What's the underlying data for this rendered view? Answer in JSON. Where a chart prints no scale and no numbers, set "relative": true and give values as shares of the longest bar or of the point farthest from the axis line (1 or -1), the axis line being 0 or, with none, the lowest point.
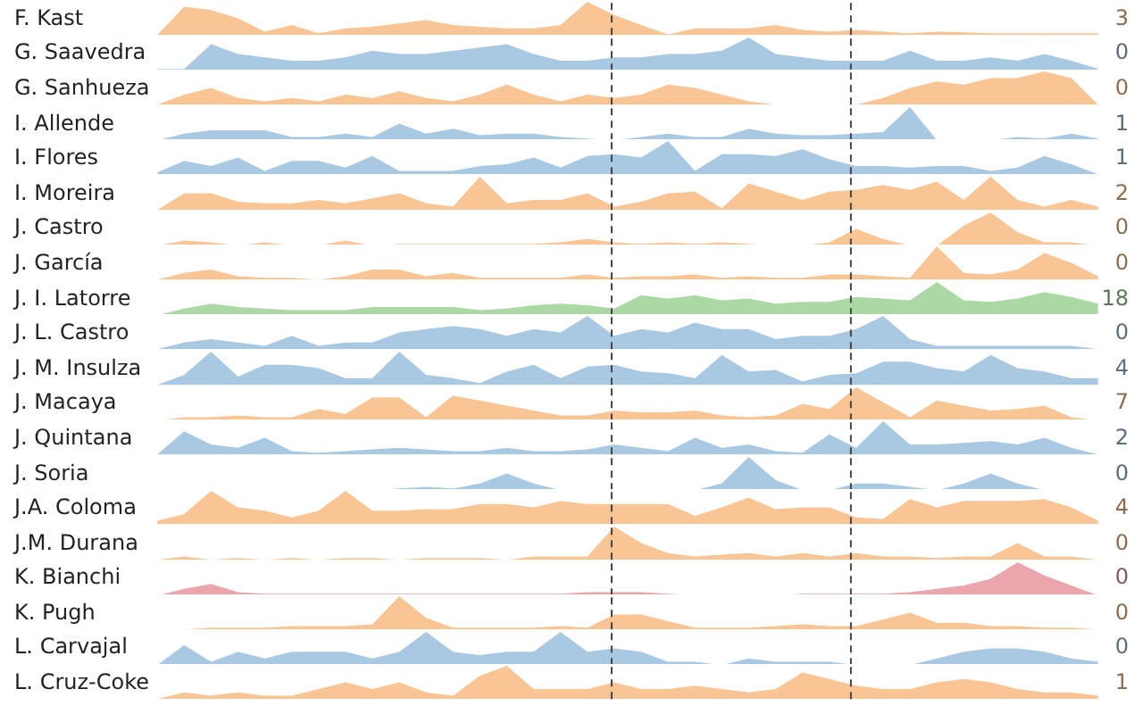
{
  "chart_data": [
    {
      "type": "area",
      "title": "F. Kast",
      "relative": true,
      "tick_labels": false,
      "categories": [
        null,
        null,
        null,
        null,
        null,
        null,
        null,
        null,
        null,
        null,
        null,
        null,
        null,
        null,
        null,
        null,
        null,
        null,
        null,
        null,
        null,
        null,
        null,
        null,
        null,
        null,
        null,
        null,
        null,
        null,
        null,
        null,
        null,
        null,
        null,
        null
      ],
      "color": "#f9c595",
      "annotations": [
        "3"
      ],
      "values": [
        0,
        0.85,
        0.75,
        0.5,
        0.1,
        0.3,
        0.05,
        0.2,
        0.25,
        0.35,
        0.45,
        0.3,
        0.25,
        0.2,
        0.2,
        0.3,
        1,
        0.6,
        0.3,
        0.02,
        0.2,
        0.2,
        0.2,
        0.3,
        0.15,
        0.1,
        0.15,
        0.1,
        0.05,
        0.1,
        0.08,
        0.05,
        0.05,
        0.05,
        0.05,
        0.05
      ]
    },
    {
      "type": "area",
      "title": "G. Saavedra",
      "relative": true,
      "tick_labels": false,
      "categories": [
        null,
        null,
        null,
        null,
        null,
        null,
        null,
        null,
        null,
        null,
        null,
        null,
        null,
        null,
        null,
        null,
        null,
        null,
        null,
        null,
        null,
        null,
        null,
        null,
        null,
        null,
        null,
        null,
        null,
        null,
        null,
        null,
        null,
        null,
        null,
        null
      ],
      "color": "#a9c8e2",
      "annotations": [
        "0"
      ],
      "values": [
        0.05,
        0.05,
        0.8,
        0.5,
        0.4,
        0.3,
        0.3,
        0.4,
        0.6,
        0.5,
        0.5,
        0.6,
        0.7,
        0.8,
        0.5,
        0.3,
        0.3,
        0.4,
        0.4,
        0.5,
        0.5,
        0.6,
        1,
        0.5,
        0.4,
        0.3,
        0.3,
        0.3,
        0.6,
        0.3,
        0.3,
        0.4,
        0.3,
        0.5,
        0.3,
        0.05
      ]
    },
    {
      "type": "area",
      "title": "G. Sanhueza",
      "relative": true,
      "tick_labels": false,
      "categories": [
        null,
        null,
        null,
        null,
        null,
        null,
        null,
        null,
        null,
        null,
        null,
        null,
        null,
        null,
        null,
        null,
        null,
        null,
        null,
        null,
        null,
        null,
        null,
        null,
        null,
        null,
        null,
        null,
        null,
        null,
        null,
        null,
        null,
        null,
        null,
        null
      ],
      "color": "#f9c595",
      "annotations": [
        "0"
      ],
      "values": [
        0,
        0.3,
        0.5,
        0.2,
        0.1,
        0.2,
        0.1,
        0.3,
        0.2,
        0.4,
        0.2,
        0.1,
        0.3,
        0.6,
        0.3,
        0.1,
        0.3,
        0.2,
        0.3,
        0.6,
        0.5,
        0.3,
        0.1,
        0,
        0,
        0,
        0,
        0.2,
        0.5,
        0.7,
        0.6,
        0.8,
        0.8,
        1,
        0.8,
        0
      ]
    },
    {
      "type": "area",
      "title": "I. Allende",
      "relative": true,
      "tick_labels": false,
      "categories": [
        null,
        null,
        null,
        null,
        null,
        null,
        null,
        null,
        null,
        null,
        null,
        null,
        null,
        null,
        null,
        null,
        null,
        null,
        null,
        null,
        null,
        null,
        null,
        null,
        null,
        null,
        null,
        null,
        null,
        null,
        null,
        null,
        null,
        null,
        null,
        null
      ],
      "color": "#a9c8e2",
      "annotations": [
        "1"
      ],
      "values": [
        0,
        0.2,
        0.3,
        0.3,
        0.3,
        0.1,
        0.1,
        0.2,
        0.1,
        0.5,
        0.2,
        0.35,
        0.15,
        0.2,
        0.2,
        0.1,
        0.05,
        0,
        0.1,
        0.2,
        0.1,
        0.1,
        0.35,
        0.2,
        0.15,
        0.15,
        0.2,
        0.25,
        1,
        0,
        0,
        0,
        0.1,
        0.05,
        0.2,
        0.05
      ]
    },
    {
      "type": "area",
      "title": "I. Flores",
      "relative": true,
      "tick_labels": false,
      "categories": [
        null,
        null,
        null,
        null,
        null,
        null,
        null,
        null,
        null,
        null,
        null,
        null,
        null,
        null,
        null,
        null,
        null,
        null,
        null,
        null,
        null,
        null,
        null,
        null,
        null,
        null,
        null,
        null,
        null,
        null,
        null,
        null,
        null,
        null,
        null,
        null
      ],
      "color": "#a9c8e2",
      "annotations": [
        "1"
      ],
      "values": [
        0.05,
        0.4,
        0.25,
        0.5,
        0.1,
        0.4,
        0.4,
        0.2,
        0.55,
        0.1,
        0.1,
        0.1,
        0.25,
        0.3,
        0.5,
        0.2,
        0.55,
        0.6,
        0.5,
        1,
        0.1,
        0.6,
        0.6,
        0.55,
        0.75,
        0.45,
        0.25,
        0.25,
        0.2,
        0.25,
        0.25,
        0.1,
        0.2,
        0.55,
        0.3,
        0
      ]
    },
    {
      "type": "area",
      "title": "I. Moreira",
      "relative": true,
      "tick_labels": false,
      "categories": [
        null,
        null,
        null,
        null,
        null,
        null,
        null,
        null,
        null,
        null,
        null,
        null,
        null,
        null,
        null,
        null,
        null,
        null,
        null,
        null,
        null,
        null,
        null,
        null,
        null,
        null,
        null,
        null,
        null,
        null,
        null,
        null,
        null,
        null,
        null,
        null
      ],
      "color": "#f9c595",
      "annotations": [
        "2"
      ],
      "values": [
        0,
        0.5,
        0.5,
        0.25,
        0.2,
        0.2,
        0.3,
        0.2,
        0.35,
        0.5,
        0.2,
        0.1,
        1,
        0.2,
        0.3,
        0.3,
        0.5,
        0.1,
        0.25,
        0.5,
        0.55,
        0.05,
        0.8,
        0.55,
        0.3,
        0.55,
        0.6,
        0.75,
        0.6,
        0.85,
        0.3,
        1,
        0.3,
        0.1,
        0.3,
        0.1
      ]
    },
    {
      "type": "area",
      "title": "J. Castro",
      "relative": true,
      "tick_labels": false,
      "categories": [
        null,
        null,
        null,
        null,
        null,
        null,
        null,
        null,
        null,
        null,
        null,
        null,
        null,
        null,
        null,
        null,
        null,
        null,
        null,
        null,
        null,
        null,
        null,
        null,
        null,
        null,
        null,
        null,
        null,
        null,
        null,
        null,
        null,
        null,
        null,
        null
      ],
      "color": "#f9c595",
      "annotations": [
        "0"
      ],
      "values": [
        0,
        0.15,
        0.1,
        0,
        0.1,
        0,
        0,
        0.15,
        0,
        0.05,
        0.05,
        0.05,
        0.05,
        0.05,
        0.05,
        0.1,
        0.2,
        0.1,
        0.05,
        0.1,
        0.05,
        0.1,
        0.05,
        0,
        0,
        0.1,
        0.5,
        0.2,
        0,
        0,
        0.6,
        1,
        0.4,
        0.1,
        0.1,
        0
      ]
    },
    {
      "type": "area",
      "title": "J. García",
      "relative": true,
      "tick_labels": false,
      "categories": [
        null,
        null,
        null,
        null,
        null,
        null,
        null,
        null,
        null,
        null,
        null,
        null,
        null,
        null,
        null,
        null,
        null,
        null,
        null,
        null,
        null,
        null,
        null,
        null,
        null,
        null,
        null,
        null,
        null,
        null,
        null,
        null,
        null,
        null,
        null,
        null
      ],
      "color": "#f9c595",
      "annotations": [
        "0"
      ],
      "values": [
        0,
        0.2,
        0.3,
        0.1,
        0.05,
        0.05,
        0,
        0.1,
        0.3,
        0.3,
        0.1,
        0.2,
        0.05,
        0.05,
        0.05,
        0.05,
        0.15,
        0.05,
        0.1,
        0.1,
        0.15,
        0.05,
        0.1,
        0.05,
        0.05,
        0.15,
        0.15,
        0.1,
        0.05,
        1,
        0.2,
        0.15,
        0.3,
        0.8,
        0.5,
        0.1
      ]
    },
    {
      "type": "area",
      "title": "J. I. Latorre",
      "relative": true,
      "tick_labels": false,
      "categories": [
        null,
        null,
        null,
        null,
        null,
        null,
        null,
        null,
        null,
        null,
        null,
        null,
        null,
        null,
        null,
        null,
        null,
        null,
        null,
        null,
        null,
        null,
        null,
        null,
        null,
        null,
        null,
        null,
        null,
        null,
        null,
        null,
        null,
        null,
        null,
        null
      ],
      "color": "#acd8a5",
      "annotations": [
        "18"
      ],
      "values": [
        0,
        0.2,
        0.35,
        0.25,
        0.2,
        0.15,
        0.15,
        0.15,
        0.25,
        0.25,
        0.25,
        0.25,
        0.15,
        0.2,
        0.3,
        0.35,
        0.3,
        0.2,
        0.6,
        0.5,
        0.6,
        0.45,
        0.5,
        0.35,
        0.4,
        0.4,
        0.55,
        0.5,
        0.45,
        1,
        0.45,
        0.4,
        0.5,
        0.7,
        0.55,
        0.35
      ]
    },
    {
      "type": "area",
      "title": "J. L. Castro",
      "relative": true,
      "tick_labels": false,
      "categories": [
        null,
        null,
        null,
        null,
        null,
        null,
        null,
        null,
        null,
        null,
        null,
        null,
        null,
        null,
        null,
        null,
        null,
        null,
        null,
        null,
        null,
        null,
        null,
        null,
        null,
        null,
        null,
        null,
        null,
        null,
        null,
        null,
        null,
        null,
        null,
        null
      ],
      "color": "#a9c8e2",
      "annotations": [
        "0"
      ],
      "values": [
        0,
        0.2,
        0.3,
        0.2,
        0.1,
        0.4,
        0.1,
        0.2,
        0.2,
        0.5,
        0.6,
        0.7,
        0.6,
        0.4,
        0.6,
        0.5,
        1,
        0.4,
        0.6,
        0.5,
        0.8,
        0.6,
        0.6,
        0.3,
        0.4,
        0.4,
        0.6,
        1,
        0.3,
        0.1,
        0.1,
        0.1,
        0.1,
        0.1,
        0.1,
        0
      ]
    },
    {
      "type": "area",
      "title": "J. M. Insulza",
      "relative": true,
      "tick_labels": false,
      "categories": [
        null,
        null,
        null,
        null,
        null,
        null,
        null,
        null,
        null,
        null,
        null,
        null,
        null,
        null,
        null,
        null,
        null,
        null,
        null,
        null,
        null,
        null,
        null,
        null,
        null,
        null,
        null,
        null,
        null,
        null,
        null,
        null,
        null,
        null,
        null,
        null
      ],
      "color": "#a9c8e2",
      "annotations": [
        "4"
      ],
      "values": [
        0,
        0.3,
        1,
        0.25,
        0.6,
        0.6,
        0.5,
        0.2,
        0.2,
        1,
        0.3,
        0.2,
        0.05,
        0.4,
        0.6,
        0.2,
        0.55,
        0.6,
        0.4,
        0.35,
        0.2,
        0.9,
        0.4,
        0.45,
        0.1,
        0.3,
        0.35,
        0.7,
        0.7,
        0.5,
        0.4,
        0.9,
        0.5,
        0.4,
        0.2,
        0.2
      ]
    },
    {
      "type": "area",
      "title": "J. Macaya",
      "relative": true,
      "tick_labels": false,
      "categories": [
        null,
        null,
        null,
        null,
        null,
        null,
        null,
        null,
        null,
        null,
        null,
        null,
        null,
        null,
        null,
        null,
        null,
        null,
        null,
        null,
        null,
        null,
        null,
        null,
        null,
        null,
        null,
        null,
        null,
        null,
        null,
        null,
        null,
        null,
        null,
        null
      ],
      "color": "#f9c595",
      "annotations": [
        "7"
      ],
      "values": [
        0,
        0.1,
        0.1,
        0.15,
        0.1,
        0.1,
        0.35,
        0.2,
        0.7,
        0.7,
        0.1,
        0.75,
        0.6,
        0.45,
        0.3,
        0.15,
        0.15,
        0.3,
        0.25,
        0.25,
        0.3,
        0.15,
        0.1,
        0.15,
        0.5,
        0.35,
        1,
        0.55,
        0.1,
        0.6,
        0.45,
        0.3,
        0.35,
        0.45,
        0.1,
        0
      ]
    },
    {
      "type": "area",
      "title": "J. Quintana",
      "relative": true,
      "tick_labels": false,
      "categories": [
        null,
        null,
        null,
        null,
        null,
        null,
        null,
        null,
        null,
        null,
        null,
        null,
        null,
        null,
        null,
        null,
        null,
        null,
        null,
        null,
        null,
        null,
        null,
        null,
        null,
        null,
        null,
        null,
        null,
        null,
        null,
        null,
        null,
        null,
        null,
        null
      ],
      "color": "#a9c8e2",
      "annotations": [
        "2"
      ],
      "values": [
        0,
        0.7,
        0.3,
        0.2,
        0.5,
        0.1,
        0.05,
        0.1,
        0.15,
        0.2,
        0.15,
        0.1,
        0.1,
        0.2,
        0.1,
        0.1,
        0.15,
        0.3,
        0.2,
        0.1,
        0.5,
        0.2,
        0.3,
        0.1,
        0.05,
        0.6,
        0.2,
        1,
        0.3,
        0.3,
        0.35,
        0.4,
        0.3,
        0.5,
        0.2,
        0
      ]
    },
    {
      "type": "area",
      "title": "J. Soria",
      "relative": true,
      "tick_labels": false,
      "categories": [
        null,
        null,
        null,
        null,
        null,
        null,
        null,
        null,
        null,
        null,
        null,
        null,
        null,
        null,
        null,
        null,
        null,
        null,
        null,
        null,
        null,
        null,
        null,
        null,
        null,
        null,
        null,
        null,
        null,
        null,
        null,
        null,
        null,
        null,
        null,
        null
      ],
      "color": "#a9c8e2",
      "annotations": [
        "0"
      ],
      "values": [
        0,
        0,
        0,
        0,
        0,
        0,
        0,
        0,
        0,
        0.05,
        0.1,
        0.05,
        0.2,
        0.5,
        0.2,
        0,
        0,
        0,
        0,
        0,
        0,
        0.2,
        1,
        0.3,
        0,
        0,
        0.2,
        0.2,
        0.1,
        0,
        0.2,
        0.5,
        0.2,
        0,
        0,
        0
      ]
    },
    {
      "type": "area",
      "title": "J.A. Coloma",
      "relative": true,
      "tick_labels": false,
      "categories": [
        null,
        null,
        null,
        null,
        null,
        null,
        null,
        null,
        null,
        null,
        null,
        null,
        null,
        null,
        null,
        null,
        null,
        null,
        null,
        null,
        null,
        null,
        null,
        null,
        null,
        null,
        null,
        null,
        null,
        null,
        null,
        null,
        null,
        null,
        null,
        null
      ],
      "color": "#f9c595",
      "annotations": [
        "4"
      ],
      "values": [
        0.1,
        0.3,
        1,
        0.5,
        0.4,
        0.2,
        0.4,
        1,
        0.4,
        0.4,
        0.45,
        0.45,
        0.6,
        0.6,
        0.5,
        0.7,
        0.6,
        0.6,
        0.6,
        0.6,
        0.25,
        0.5,
        0.8,
        0.45,
        0.5,
        0.5,
        0.2,
        0.15,
        0.75,
        0.5,
        0.7,
        0.7,
        0.7,
        0.75,
        0.5,
        0.1
      ]
    },
    {
      "type": "area",
      "title": "J.M. Durana",
      "relative": true,
      "tick_labels": false,
      "categories": [
        null,
        null,
        null,
        null,
        null,
        null,
        null,
        null,
        null,
        null,
        null,
        null,
        null,
        null,
        null,
        null,
        null,
        null,
        null,
        null,
        null,
        null,
        null,
        null,
        null,
        null,
        null,
        null,
        null,
        null,
        null,
        null,
        null,
        null,
        null,
        null
      ],
      "color": "#f9c595",
      "annotations": [
        "0"
      ],
      "values": [
        0,
        0.1,
        0,
        0.05,
        0,
        0.05,
        0,
        0.05,
        0.05,
        0,
        0.05,
        0.05,
        0.05,
        0,
        0.1,
        0.1,
        0.1,
        1,
        0.5,
        0.2,
        0.1,
        0.15,
        0.2,
        0.1,
        0.2,
        0.1,
        0.2,
        0.1,
        0.1,
        0.05,
        0.1,
        0.1,
        0.5,
        0.1,
        0.1,
        0
      ]
    },
    {
      "type": "area",
      "title": "K. Bianchi",
      "relative": true,
      "tick_labels": false,
      "categories": [
        null,
        null,
        null,
        null,
        null,
        null,
        null,
        null,
        null,
        null,
        null,
        null,
        null,
        null,
        null,
        null,
        null,
        null,
        null,
        null,
        null,
        null,
        null,
        null,
        null,
        null,
        null,
        null,
        null,
        null,
        null,
        null,
        null,
        null,
        null,
        null
      ],
      "color": "#eba6ad",
      "annotations": [
        "0"
      ],
      "values": [
        0,
        0.2,
        0.35,
        0.1,
        0.05,
        0.05,
        0.05,
        0.05,
        0.05,
        0.05,
        0.05,
        0.05,
        0.05,
        0.05,
        0.05,
        0.05,
        0.1,
        0.1,
        0.1,
        0.05,
        0,
        0,
        0,
        0,
        0.05,
        0.05,
        0.05,
        0.05,
        0.1,
        0.2,
        0.3,
        0.5,
        1,
        0.6,
        0.3,
        0
      ]
    },
    {
      "type": "area",
      "title": "K. Pugh",
      "relative": true,
      "tick_labels": false,
      "categories": [
        null,
        null,
        null,
        null,
        null,
        null,
        null,
        null,
        null,
        null,
        null,
        null,
        null,
        null,
        null,
        null,
        null,
        null,
        null,
        null,
        null,
        null,
        null,
        null,
        null,
        null,
        null,
        null,
        null,
        null,
        null,
        null,
        null,
        null,
        null,
        null
      ],
      "color": "#f9c595",
      "annotations": [
        "0"
      ],
      "values": [
        0,
        0,
        0.05,
        0.05,
        0.05,
        0.1,
        0.1,
        0.1,
        0.15,
        1,
        0.35,
        0.05,
        0.05,
        0.05,
        0.05,
        0.1,
        0.05,
        0.45,
        0.45,
        0.25,
        0.05,
        0.05,
        0.05,
        0.1,
        0.15,
        0.1,
        0.1,
        0.3,
        0.5,
        0.2,
        0.2,
        0.1,
        0.1,
        0.05,
        0.05,
        0
      ]
    },
    {
      "type": "area",
      "title": "L. Carvajal",
      "relative": true,
      "tick_labels": false,
      "categories": [
        null,
        null,
        null,
        null,
        null,
        null,
        null,
        null,
        null,
        null,
        null,
        null,
        null,
        null,
        null,
        null,
        null,
        null,
        null,
        null,
        null,
        null,
        null,
        null,
        null,
        null,
        null,
        null,
        null,
        null,
        null,
        null,
        null,
        null,
        null,
        null
      ],
      "color": "#a9c8e2",
      "annotations": [
        "0"
      ],
      "values": [
        0,
        0.6,
        0.1,
        0.4,
        0.2,
        0.4,
        0.4,
        0.4,
        0.2,
        0.4,
        1,
        0.4,
        0.3,
        0.4,
        0.4,
        1,
        0.4,
        0.5,
        0.4,
        0.1,
        0.1,
        0,
        0.2,
        0.1,
        0.1,
        0.1,
        0,
        0,
        0,
        0.2,
        0.4,
        0.5,
        0.5,
        0.4,
        0.2,
        0.1
      ]
    },
    {
      "type": "area",
      "title": "L. Cruz-Coke",
      "relative": true,
      "tick_labels": false,
      "categories": [
        null,
        null,
        null,
        null,
        null,
        null,
        null,
        null,
        null,
        null,
        null,
        null,
        null,
        null,
        null,
        null,
        null,
        null,
        null,
        null,
        null,
        null,
        null,
        null,
        null,
        null,
        null,
        null,
        null,
        null,
        null,
        null,
        null,
        null,
        null,
        null
      ],
      "color": "#f9c595",
      "annotations": [
        "1"
      ],
      "values": [
        0,
        0.2,
        0.1,
        0.2,
        0.1,
        0.1,
        0.3,
        0.5,
        0.3,
        0.5,
        0.2,
        0.1,
        0.7,
        1,
        0.3,
        0.3,
        0.3,
        0.5,
        0.3,
        0.3,
        0.4,
        0.3,
        0.2,
        0.3,
        0.8,
        0.6,
        0.4,
        0.3,
        0.3,
        0.5,
        0.6,
        0.5,
        0.3,
        0.2,
        0.2,
        0.1
      ]
    }
  ]
}
